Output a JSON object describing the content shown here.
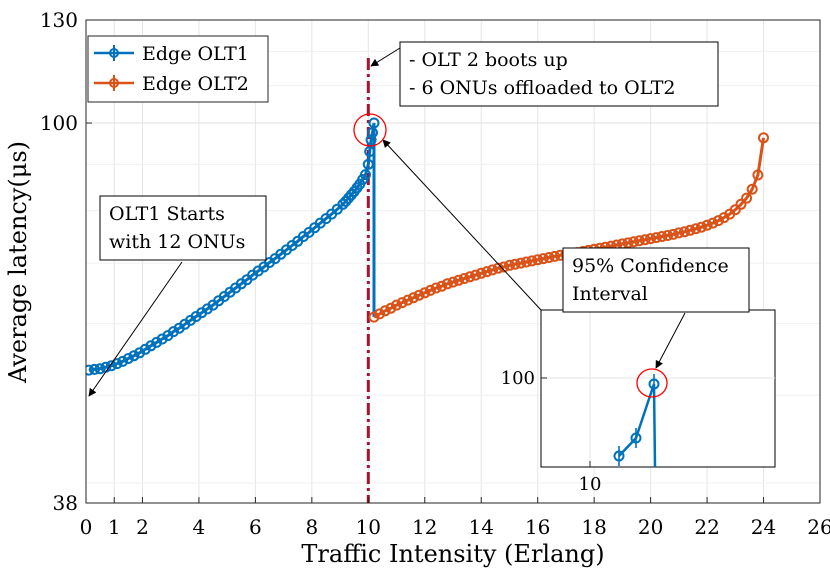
{
  "chart_data": {
    "type": "line",
    "xlabel": "Traffic Intensity (Erlang)",
    "ylabel": "Average latency(μs)",
    "xlim": [
      0,
      26
    ],
    "ylim": [
      38,
      130
    ],
    "y_scale": "log",
    "grid": true,
    "legend_position": "top-left",
    "x_ticks": [
      0,
      1,
      2,
      4,
      6,
      8,
      10,
      12,
      14,
      16,
      18,
      20,
      22,
      24,
      26
    ],
    "y_ticks": [
      38,
      100,
      130
    ],
    "colors": {
      "olt1": "#0072BD",
      "olt2": "#D95319",
      "vline": "#A2142F",
      "confidence_circle": "#FF0000"
    },
    "series": [
      {
        "name": "Edge OLT1",
        "x": [
          0.1,
          0.3,
          0.5,
          0.7,
          0.9,
          1.1,
          1.3,
          1.5,
          1.7,
          1.9,
          2.1,
          2.3,
          2.5,
          2.7,
          2.9,
          3.1,
          3.3,
          3.5,
          3.7,
          3.9,
          4.1,
          4.3,
          4.5,
          4.7,
          4.9,
          5.1,
          5.3,
          5.5,
          5.7,
          5.9,
          6.1,
          6.3,
          6.5,
          6.7,
          6.9,
          7.1,
          7.3,
          7.5,
          7.7,
          7.9,
          8.1,
          8.3,
          8.5,
          8.7,
          8.9,
          9.1,
          9.2,
          9.3,
          9.4,
          9.5,
          9.6,
          9.7,
          9.8,
          9.9,
          10.0,
          10.05,
          10.1,
          10.15,
          10.2
        ],
        "y": [
          53.3,
          53.4,
          53.5,
          53.7,
          53.9,
          54.2,
          54.5,
          54.9,
          55.3,
          55.7,
          56.2,
          56.7,
          57.2,
          57.7,
          58.2,
          58.8,
          59.3,
          59.9,
          60.5,
          61.1,
          61.7,
          62.3,
          62.9,
          63.6,
          64.3,
          65.0,
          65.7,
          66.4,
          67.1,
          67.9,
          68.6,
          69.3,
          70.1,
          70.8,
          71.6,
          72.4,
          73.2,
          74.0,
          74.9,
          75.7,
          76.6,
          77.5,
          78.4,
          79.3,
          80.3,
          81.3,
          81.9,
          82.6,
          83.3,
          84.0,
          84.8,
          85.6,
          86.6,
          87.7,
          90.0,
          93.0,
          95.8,
          97.6,
          100.0
        ]
      },
      {
        "name": "Edge OLT2",
        "x": [
          10.2,
          10.4,
          10.6,
          10.8,
          11.0,
          11.2,
          11.4,
          11.6,
          11.8,
          12.0,
          12.2,
          12.4,
          12.6,
          12.8,
          13.0,
          13.2,
          13.4,
          13.6,
          13.8,
          14.0,
          14.2,
          14.4,
          14.6,
          14.8,
          15.0,
          15.2,
          15.4,
          15.6,
          15.8,
          16.0,
          16.2,
          16.4,
          16.6,
          16.8,
          17.0,
          17.2,
          17.4,
          17.6,
          17.8,
          18.0,
          18.2,
          18.4,
          18.6,
          18.8,
          19.0,
          19.2,
          19.4,
          19.6,
          19.8,
          20.0,
          20.2,
          20.4,
          20.6,
          20.8,
          21.0,
          21.2,
          21.4,
          21.6,
          21.8,
          22.0,
          22.2,
          22.4,
          22.6,
          22.8,
          23.0,
          23.2,
          23.4,
          23.6,
          23.8,
          24.0
        ],
        "y": [
          61.0,
          61.5,
          62.0,
          62.4,
          62.9,
          63.3,
          63.7,
          64.1,
          64.5,
          64.9,
          65.3,
          65.7,
          66.0,
          66.4,
          66.7,
          67.0,
          67.3,
          67.6,
          67.9,
          68.2,
          68.5,
          68.8,
          69.1,
          69.3,
          69.6,
          69.8,
          70.0,
          70.2,
          70.4,
          70.6,
          70.8,
          71.0,
          71.2,
          71.4,
          71.6,
          71.7,
          71.9,
          72.1,
          72.3,
          72.5,
          72.7,
          72.9,
          73.1,
          73.3,
          73.5,
          73.7,
          73.9,
          74.1,
          74.3,
          74.5,
          74.7,
          74.9,
          75.1,
          75.3,
          75.6,
          75.8,
          76.1,
          76.4,
          76.7,
          77.1,
          77.5,
          78.0,
          78.6,
          79.3,
          80.2,
          81.3,
          82.6,
          84.5,
          87.6,
          96.3
        ]
      }
    ],
    "vertical_line_x": 10,
    "annotations": [
      {
        "id": "olt1-start",
        "lines": [
          "OLT1 Starts",
          "with 12 ONUs"
        ]
      },
      {
        "id": "olt2-boot",
        "lines": [
          "- OLT 2 boots up",
          "- 6 ONUs offloaded to OLT2"
        ]
      },
      {
        "id": "confidence",
        "lines": [
          "95% Confidence",
          "Interval"
        ]
      }
    ],
    "inset": {
      "x_tick": 10,
      "y_tick": 100,
      "x_tick_label": "10",
      "y_tick_label": "100"
    }
  }
}
